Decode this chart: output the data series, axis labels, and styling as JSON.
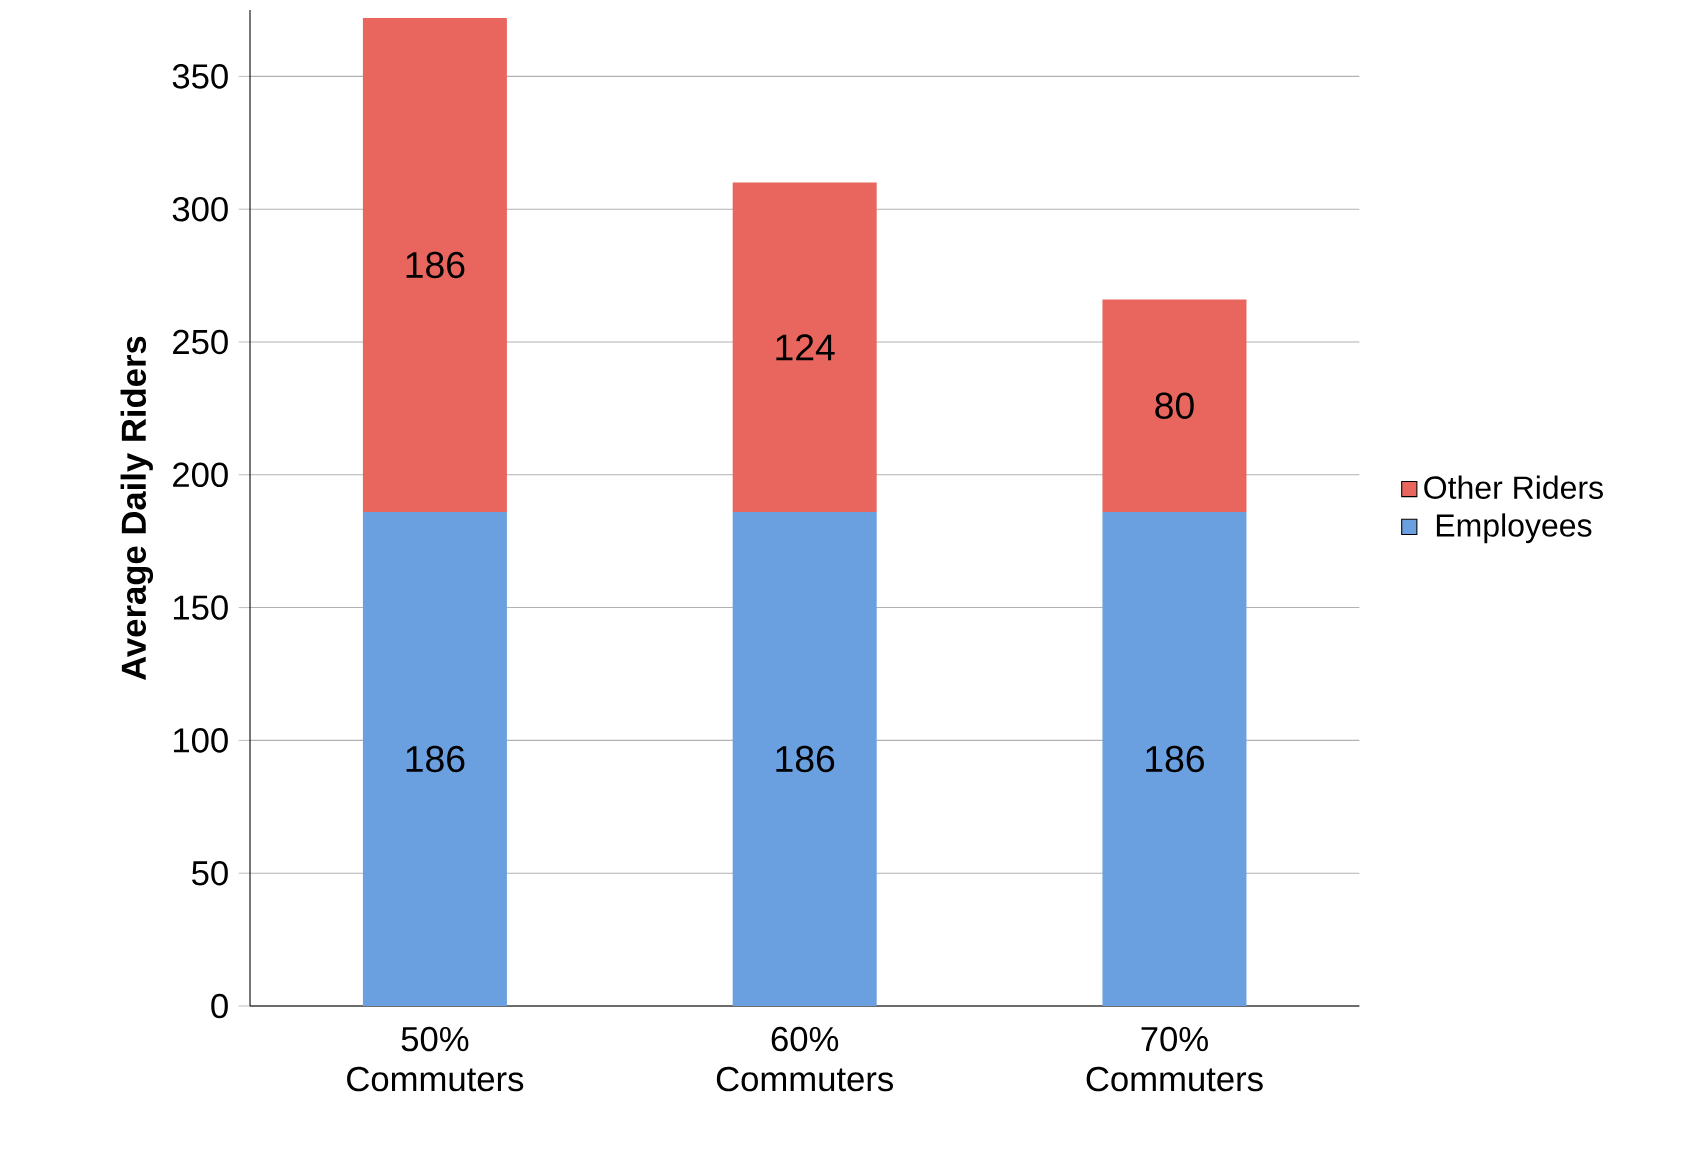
{
  "chart_data": {
    "type": "bar",
    "stacked": true,
    "ylabel": "Average Daily Riders",
    "categories": [
      "50% Commuters",
      "60% Commuters",
      "70% Commuters"
    ],
    "series": [
      {
        "name": "Employees",
        "color": "#6a9fe0",
        "values": [
          186,
          186,
          186
        ]
      },
      {
        "name": "Other Riders",
        "color": "#e8665e",
        "values": [
          186,
          124,
          80
        ]
      }
    ],
    "ylim": [
      0,
      375
    ],
    "yticks": [
      0,
      50,
      100,
      150,
      200,
      250,
      300,
      350
    ],
    "grid": "y",
    "legend": "right",
    "data_labels": true
  }
}
